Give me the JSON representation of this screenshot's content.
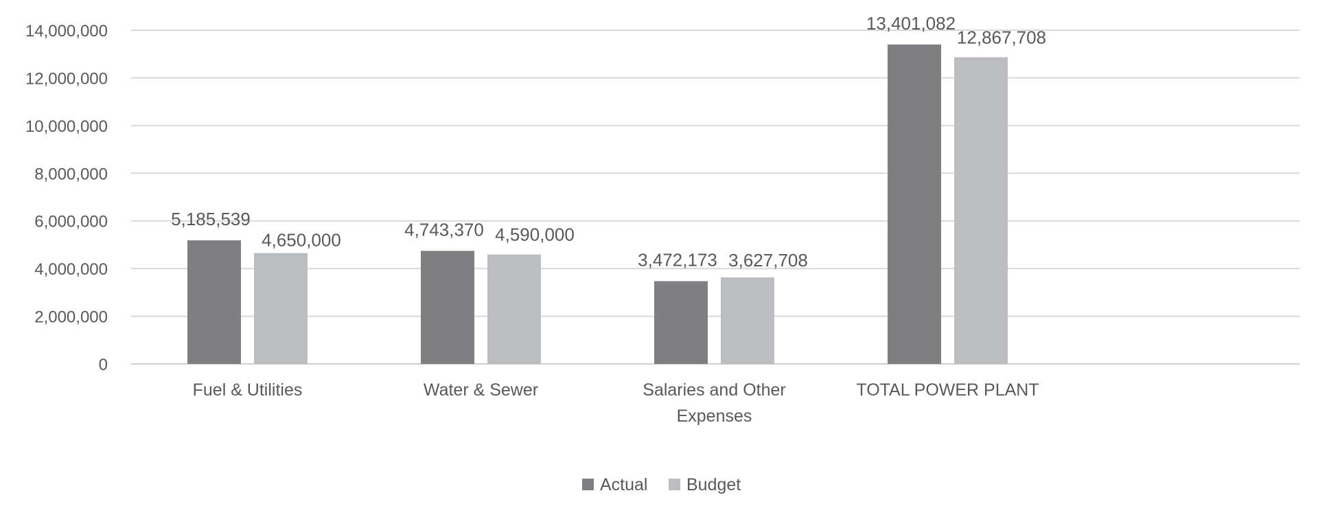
{
  "chart_data": {
    "type": "bar",
    "title": "",
    "xlabel": "",
    "ylabel": "",
    "ylim": [
      0,
      14000000
    ],
    "yticks": [
      0,
      2000000,
      4000000,
      6000000,
      8000000,
      10000000,
      12000000,
      14000000
    ],
    "ytick_labels": [
      "0",
      "2,000,000",
      "4,000,000",
      "6,000,000",
      "8,000,000",
      "10,000,000",
      "12,000,000",
      "14,000,000"
    ],
    "grid": true,
    "legend_position": "bottom-center",
    "categories": [
      [
        "Fuel & Utilities"
      ],
      [
        "Water & Sewer"
      ],
      [
        "Salaries and Other",
        "Expenses"
      ],
      [
        "TOTAL POWER PLANT"
      ]
    ],
    "series": [
      {
        "name": "Actual",
        "color": "#7f7f82",
        "values": [
          5185539,
          4743370,
          3472173,
          13401082
        ],
        "labels": [
          "5,185,539",
          "4,743,370",
          "3,472,173",
          "13,401,082"
        ]
      },
      {
        "name": "Budget",
        "color": "#bcbdc0",
        "values": [
          4650000,
          4590000,
          3627708,
          12867708
        ],
        "labels": [
          "4,650,000",
          "4,590,000",
          "3,627,708",
          "12,867,708"
        ]
      }
    ]
  }
}
